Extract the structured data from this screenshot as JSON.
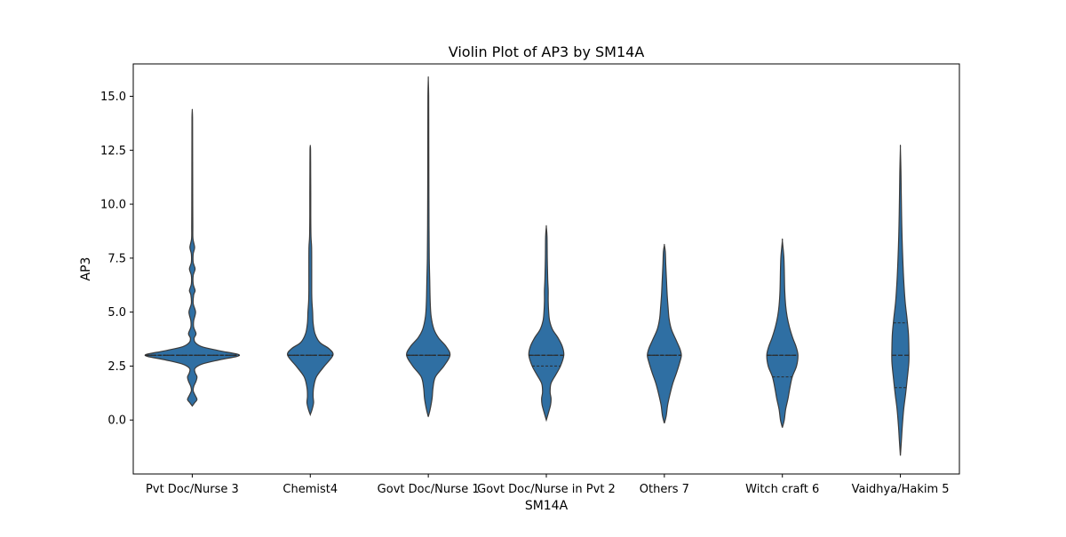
{
  "chart_data": {
    "type": "violin",
    "title": "Violin Plot of AP3 by SM14A",
    "xlabel": "SM14A",
    "ylabel": "AP3",
    "ylim": [
      -2.5,
      16.5
    ],
    "yticks": [
      0.0,
      2.5,
      5.0,
      7.5,
      10.0,
      12.5,
      15.0
    ],
    "ytick_labels": [
      "0.0",
      "2.5",
      "5.0",
      "7.5",
      "10.0",
      "12.5",
      "15.0"
    ],
    "grid": false,
    "color": "#2f6fa3",
    "categories": [
      "Pvt Doc/Nurse 3",
      "Chemist4",
      "Govt Doc/Nurse 1",
      "Govt Doc/Nurse in Pvt 2",
      "Others 7",
      "Witch craft 6",
      "Vaidhya/Hakim 5"
    ],
    "violins": [
      {
        "category": "Pvt Doc/Nurse 3",
        "min": 0.65,
        "max": 14.35,
        "q1": 3.0,
        "median": 3.0,
        "q3": 3.0,
        "density": [
          [
            0.65,
            0.0
          ],
          [
            0.8,
            0.05
          ],
          [
            0.95,
            0.1
          ],
          [
            1.15,
            0.06
          ],
          [
            1.35,
            0.02
          ],
          [
            1.55,
            0.03
          ],
          [
            1.8,
            0.08
          ],
          [
            2.0,
            0.1
          ],
          [
            2.2,
            0.06
          ],
          [
            2.4,
            0.06
          ],
          [
            2.6,
            0.22
          ],
          [
            2.8,
            0.6
          ],
          [
            3.0,
            1.0
          ],
          [
            3.2,
            0.6
          ],
          [
            3.4,
            0.2
          ],
          [
            3.6,
            0.06
          ],
          [
            3.8,
            0.04
          ],
          [
            4.0,
            0.08
          ],
          [
            4.3,
            0.03
          ],
          [
            4.6,
            0.03
          ],
          [
            5.0,
            0.07
          ],
          [
            5.4,
            0.02
          ],
          [
            5.8,
            0.03
          ],
          [
            6.0,
            0.06
          ],
          [
            6.3,
            0.02
          ],
          [
            6.7,
            0.02
          ],
          [
            7.0,
            0.06
          ],
          [
            7.3,
            0.02
          ],
          [
            7.7,
            0.02
          ],
          [
            8.0,
            0.05
          ],
          [
            8.4,
            0.015
          ],
          [
            9.0,
            0.012
          ],
          [
            10.0,
            0.01
          ],
          [
            11.0,
            0.009
          ],
          [
            12.0,
            0.008
          ],
          [
            13.0,
            0.007
          ],
          [
            14.0,
            0.006
          ],
          [
            14.35,
            0.0
          ]
        ]
      },
      {
        "category": "Chemist4",
        "min": 0.25,
        "max": 12.7,
        "q1": 3.0,
        "median": 3.0,
        "q3": 3.0,
        "density": [
          [
            0.25,
            0.0
          ],
          [
            0.5,
            0.04
          ],
          [
            0.8,
            0.07
          ],
          [
            1.1,
            0.06
          ],
          [
            1.5,
            0.07
          ],
          [
            2.0,
            0.13
          ],
          [
            2.5,
            0.3
          ],
          [
            3.0,
            0.48
          ],
          [
            3.3,
            0.4
          ],
          [
            3.6,
            0.2
          ],
          [
            4.0,
            0.1
          ],
          [
            4.5,
            0.06
          ],
          [
            5.0,
            0.05
          ],
          [
            5.5,
            0.035
          ],
          [
            6.0,
            0.03
          ],
          [
            7.0,
            0.03
          ],
          [
            8.0,
            0.028
          ],
          [
            8.5,
            0.015
          ],
          [
            9.5,
            0.01
          ],
          [
            10.5,
            0.01
          ],
          [
            11.5,
            0.008
          ],
          [
            12.5,
            0.006
          ],
          [
            12.7,
            0.0
          ]
        ]
      },
      {
        "category": "Govt Doc/Nurse 1",
        "min": 0.15,
        "max": 15.8,
        "q1": 3.0,
        "median": 3.0,
        "q3": 3.0,
        "density": [
          [
            0.15,
            0.0
          ],
          [
            0.5,
            0.04
          ],
          [
            1.0,
            0.08
          ],
          [
            1.5,
            0.1
          ],
          [
            2.0,
            0.15
          ],
          [
            2.5,
            0.33
          ],
          [
            3.0,
            0.46
          ],
          [
            3.4,
            0.38
          ],
          [
            3.8,
            0.22
          ],
          [
            4.2,
            0.12
          ],
          [
            4.8,
            0.06
          ],
          [
            5.5,
            0.04
          ],
          [
            6.5,
            0.03
          ],
          [
            7.5,
            0.02
          ],
          [
            9.0,
            0.015
          ],
          [
            11.0,
            0.012
          ],
          [
            13.0,
            0.01
          ],
          [
            15.0,
            0.008
          ],
          [
            15.8,
            0.0
          ]
        ]
      },
      {
        "category": "Govt Doc/Nurse in Pvt 2",
        "min": 0.0,
        "max": 8.95,
        "q1": 2.5,
        "median": 3.0,
        "q3": 3.0,
        "density": [
          [
            0.0,
            0.0
          ],
          [
            0.3,
            0.04
          ],
          [
            0.7,
            0.09
          ],
          [
            1.0,
            0.1
          ],
          [
            1.3,
            0.08
          ],
          [
            1.7,
            0.1
          ],
          [
            2.1,
            0.2
          ],
          [
            2.5,
            0.3
          ],
          [
            3.0,
            0.37
          ],
          [
            3.4,
            0.34
          ],
          [
            3.8,
            0.25
          ],
          [
            4.2,
            0.13
          ],
          [
            4.6,
            0.07
          ],
          [
            5.0,
            0.05
          ],
          [
            5.5,
            0.04
          ],
          [
            6.0,
            0.04
          ],
          [
            6.5,
            0.03
          ],
          [
            7.5,
            0.02
          ],
          [
            8.5,
            0.015
          ],
          [
            8.95,
            0.0
          ]
        ]
      },
      {
        "category": "Others 7",
        "min": -0.15,
        "max": 8.1,
        "q1": 3.0,
        "median": 3.0,
        "q3": 3.0,
        "density": [
          [
            -0.15,
            0.0
          ],
          [
            0.2,
            0.04
          ],
          [
            0.7,
            0.07
          ],
          [
            1.2,
            0.12
          ],
          [
            1.7,
            0.18
          ],
          [
            2.2,
            0.26
          ],
          [
            2.7,
            0.33
          ],
          [
            3.0,
            0.36
          ],
          [
            3.3,
            0.33
          ],
          [
            3.7,
            0.25
          ],
          [
            4.2,
            0.15
          ],
          [
            4.7,
            0.1
          ],
          [
            5.2,
            0.08
          ],
          [
            5.8,
            0.06
          ],
          [
            6.5,
            0.045
          ],
          [
            7.2,
            0.03
          ],
          [
            7.8,
            0.02
          ],
          [
            8.1,
            0.0
          ]
        ]
      },
      {
        "category": "Witch craft 6",
        "min": -0.35,
        "max": 8.3,
        "q1": 2.0,
        "median": 3.0,
        "q3": 3.0,
        "density": [
          [
            -0.35,
            0.0
          ],
          [
            0.0,
            0.04
          ],
          [
            0.5,
            0.07
          ],
          [
            1.0,
            0.12
          ],
          [
            1.5,
            0.16
          ],
          [
            2.0,
            0.21
          ],
          [
            2.5,
            0.3
          ],
          [
            3.0,
            0.33
          ],
          [
            3.4,
            0.29
          ],
          [
            3.8,
            0.22
          ],
          [
            4.3,
            0.15
          ],
          [
            4.8,
            0.1
          ],
          [
            5.3,
            0.07
          ],
          [
            6.0,
            0.05
          ],
          [
            7.0,
            0.04
          ],
          [
            7.6,
            0.03
          ],
          [
            8.3,
            0.0
          ]
        ]
      },
      {
        "category": "Vaidhya/Hakim 5",
        "min": -1.65,
        "max": 12.6,
        "q1": 1.5,
        "median": 3.0,
        "q3": 4.5,
        "density": [
          [
            -1.65,
            0.0
          ],
          [
            -1.0,
            0.02
          ],
          [
            -0.3,
            0.04
          ],
          [
            0.5,
            0.07
          ],
          [
            1.2,
            0.11
          ],
          [
            2.0,
            0.15
          ],
          [
            2.7,
            0.18
          ],
          [
            3.3,
            0.18
          ],
          [
            4.0,
            0.17
          ],
          [
            4.7,
            0.14
          ],
          [
            5.5,
            0.1
          ],
          [
            6.5,
            0.07
          ],
          [
            7.5,
            0.05
          ],
          [
            8.5,
            0.035
          ],
          [
            9.5,
            0.025
          ],
          [
            10.5,
            0.018
          ],
          [
            11.5,
            0.012
          ],
          [
            12.6,
            0.0
          ]
        ]
      }
    ]
  }
}
